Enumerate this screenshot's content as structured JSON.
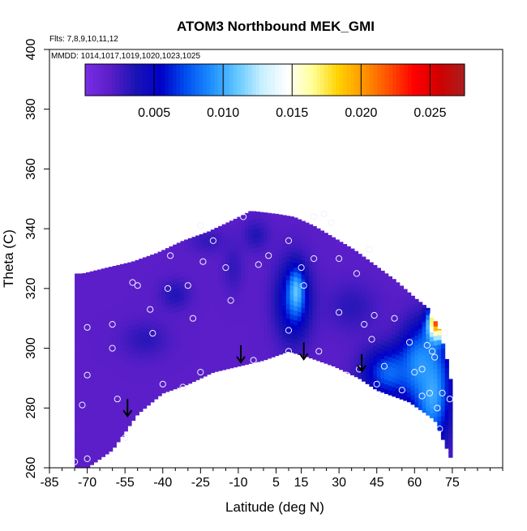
{
  "chart_data": {
    "type": "heatmap",
    "title": "ATOM3 Northbound MEK_GMI",
    "subtitle_flights": "Flts: 7,8,9,10,11,12",
    "subtitle_mmdd": "MMDD: 1014,1017,1019,1020,1023,1025",
    "xlabel": "Latitude (deg N)",
    "ylabel": "Theta (C)",
    "xlim": [
      -85,
      95
    ],
    "ylim": [
      260,
      400
    ],
    "x_ticks": [
      -85,
      -70,
      -55,
      -40,
      -25,
      -10,
      5,
      15,
      30,
      45,
      60,
      75
    ],
    "y_ticks": [
      260,
      280,
      300,
      320,
      340,
      360,
      380,
      400
    ],
    "colorbar": {
      "range": [
        0,
        0.0275
      ],
      "ticks": [
        "0.005",
        "0.010",
        "0.015",
        "0.020",
        "0.025"
      ],
      "tick_values": [
        0.005,
        0.01,
        0.015,
        0.02,
        0.025
      ],
      "colors": [
        "#7a2ee6",
        "#5a1ec8",
        "#1a14b4",
        "#0000c8",
        "#0050f0",
        "#1e90ff",
        "#64c8ff",
        "#c8f0ff",
        "#ffffff",
        "#ffff96",
        "#ffd200",
        "#ff9600",
        "#ff5000",
        "#ff0000",
        "#d20000",
        "#aa1e1e"
      ]
    },
    "domain_top": [
      [
        -72,
        325
      ],
      [
        -62,
        327
      ],
      [
        -52,
        329
      ],
      [
        -42,
        332
      ],
      [
        -32,
        336
      ],
      [
        -22,
        339
      ],
      [
        -12,
        343
      ],
      [
        -5,
        346
      ],
      [
        5,
        345
      ],
      [
        12,
        344
      ],
      [
        20,
        341
      ],
      [
        28,
        337
      ],
      [
        36,
        333
      ],
      [
        44,
        328
      ],
      [
        52,
        323
      ],
      [
        60,
        317
      ],
      [
        66,
        313
      ],
      [
        70,
        306
      ],
      [
        74,
        292
      ],
      [
        75,
        283
      ]
    ],
    "domain_bottom": [
      [
        75,
        262
      ],
      [
        72,
        268
      ],
      [
        68,
        276
      ],
      [
        58,
        282
      ],
      [
        45,
        286
      ],
      [
        38,
        290
      ],
      [
        28,
        294
      ],
      [
        18,
        297
      ],
      [
        10,
        299
      ],
      [
        0,
        296
      ],
      [
        -10,
        294
      ],
      [
        -20,
        292
      ],
      [
        -30,
        288
      ],
      [
        -40,
        285
      ],
      [
        -50,
        278
      ],
      [
        -60,
        266
      ],
      [
        -70,
        260
      ],
      [
        -75,
        260
      ]
    ],
    "blobs": [
      {
        "lat": -47,
        "theta": 303,
        "rx": 9,
        "ry": 6,
        "value": 0.0032
      },
      {
        "lat": -35,
        "theta": 318,
        "rx": 6,
        "ry": 5,
        "value": 0.0035
      },
      {
        "lat": -22,
        "theta": 336,
        "rx": 7,
        "ry": 4,
        "value": 0.003
      },
      {
        "lat": -12,
        "theta": 327,
        "rx": 4,
        "ry": 8,
        "value": 0.003
      },
      {
        "lat": -3,
        "theta": 338,
        "rx": 5,
        "ry": 5,
        "value": 0.0035
      },
      {
        "lat": 12,
        "theta": 316,
        "rx": 7,
        "ry": 13,
        "value": 0.0068
      },
      {
        "lat": 13,
        "theta": 319,
        "rx": 3,
        "ry": 7,
        "value": 0.011
      },
      {
        "lat": 35,
        "theta": 314,
        "rx": 10,
        "ry": 8,
        "value": 0.0032
      },
      {
        "lat": 50,
        "theta": 292,
        "rx": 10,
        "ry": 8,
        "value": 0.008
      },
      {
        "lat": 62,
        "theta": 295,
        "rx": 8,
        "ry": 12,
        "value": 0.009
      },
      {
        "lat": 67,
        "theta": 285,
        "rx": 7,
        "ry": 17,
        "value": 0.01
      },
      {
        "lat": 69,
        "theta": 307,
        "rx": 4,
        "ry": 5,
        "value": 0.016
      },
      {
        "lat": 69,
        "theta": 310,
        "rx": 2.5,
        "ry": 3.5,
        "value": 0.025
      }
    ],
    "observation_points": [
      [
        -75,
        262
      ],
      [
        -70,
        263
      ],
      [
        -72,
        281
      ],
      [
        -70,
        291
      ],
      [
        -70,
        307
      ],
      [
        -60,
        308
      ],
      [
        -60,
        300
      ],
      [
        -58,
        283
      ],
      [
        -55,
        270
      ],
      [
        -52,
        322
      ],
      [
        -50,
        321
      ],
      [
        -45,
        313
      ],
      [
        -44,
        305
      ],
      [
        -40,
        288
      ],
      [
        -38,
        320
      ],
      [
        -37,
        331
      ],
      [
        -32,
        287
      ],
      [
        -30,
        321
      ],
      [
        -28,
        310
      ],
      [
        -25,
        292
      ],
      [
        -25,
        341
      ],
      [
        -24,
        329
      ],
      [
        -20,
        336
      ],
      [
        -15,
        327
      ],
      [
        -13,
        316
      ],
      [
        -8,
        344
      ],
      [
        -4,
        296
      ],
      [
        -2,
        328
      ],
      [
        2,
        331
      ],
      [
        10,
        336
      ],
      [
        10,
        299
      ],
      [
        10,
        306
      ],
      [
        15,
        327
      ],
      [
        16,
        321
      ],
      [
        20,
        330
      ],
      [
        20,
        344
      ],
      [
        22,
        299
      ],
      [
        24,
        345
      ],
      [
        27,
        342
      ],
      [
        30,
        330
      ],
      [
        30,
        312
      ],
      [
        33,
        291
      ],
      [
        37,
        325
      ],
      [
        38,
        293
      ],
      [
        40,
        308
      ],
      [
        42,
        333
      ],
      [
        43,
        303
      ],
      [
        44,
        311
      ],
      [
        45,
        288
      ],
      [
        47,
        284
      ],
      [
        48,
        294
      ],
      [
        52,
        310
      ],
      [
        55,
        286
      ],
      [
        58,
        302
      ],
      [
        60,
        292
      ],
      [
        63,
        284
      ],
      [
        63,
        293
      ],
      [
        65,
        301
      ],
      [
        66,
        285
      ],
      [
        67,
        299
      ],
      [
        68,
        297
      ],
      [
        69,
        280
      ],
      [
        70,
        273
      ],
      [
        71,
        285
      ],
      [
        72,
        305
      ],
      [
        74,
        283
      ]
    ],
    "arrows": [
      [
        -54,
        283
      ],
      [
        -9,
        301
      ],
      [
        16,
        302
      ],
      [
        39,
        298
      ]
    ]
  }
}
